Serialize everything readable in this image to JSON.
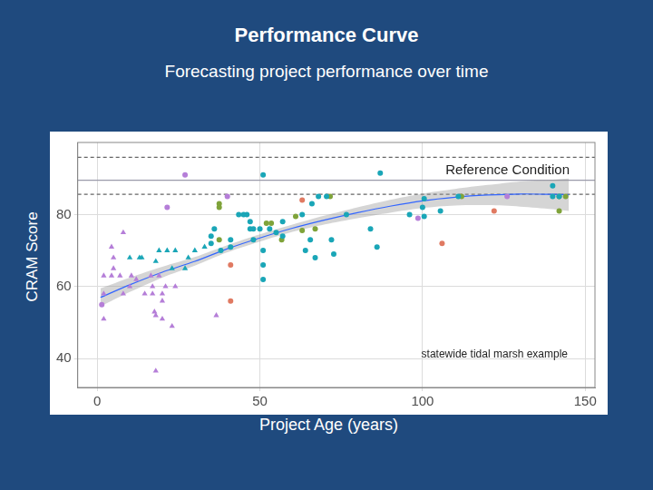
{
  "chart_data": {
    "type": "scatter",
    "title": "Performance Curve",
    "subtitle": "Forecasting project performance over time",
    "x_label": "Project Age (years)",
    "y_label": "CRAM Score",
    "xlim": [
      -6,
      153
    ],
    "ylim": [
      32,
      100
    ],
    "xticks": [
      0,
      50,
      100,
      150
    ],
    "yticks": [
      40,
      60,
      80
    ],
    "grid": true,
    "series": [
      {
        "color": "#b57ed8",
        "marker": "triangle",
        "x": [
          2,
          2,
          2,
          4.4,
          5,
          5,
          4.4,
          8,
          7,
          8,
          10,
          10.5,
          12,
          14.6,
          16.5,
          17,
          17,
          17.6,
          18,
          18,
          19,
          20,
          20,
          20,
          21,
          23,
          24,
          36.6
        ],
        "values": [
          63,
          51,
          58,
          71,
          68,
          65,
          63,
          75,
          63,
          58,
          60,
          63,
          62,
          58,
          63,
          60,
          58,
          53,
          52,
          36.6,
          63,
          58,
          56,
          51,
          60,
          49,
          60,
          52
        ]
      },
      {
        "color": "#b57ed8",
        "marker": "circle",
        "x": [
          1.4,
          21.5,
          27,
          40,
          98.6,
          126
        ],
        "values": [
          55,
          82,
          91,
          85,
          79,
          85
        ]
      },
      {
        "color": "#1aa6b7",
        "marker": "triangle",
        "x": [
          21.5,
          13,
          13.7,
          10,
          18,
          19,
          23,
          24,
          27,
          28,
          30,
          33
        ],
        "values": [
          70,
          68,
          68,
          68,
          67,
          70,
          65,
          70,
          65,
          68,
          70,
          71
        ]
      },
      {
        "color": "#1aa6b7",
        "marker": "circle",
        "x": [
          35,
          35,
          36,
          38,
          41,
          41,
          43.5,
          45,
          46,
          47,
          47,
          48,
          48,
          50,
          51,
          51,
          51,
          51,
          53,
          55,
          57,
          57,
          63,
          64,
          65.5,
          66,
          67,
          68,
          70.5,
          72,
          72.7,
          76.6,
          84,
          86,
          87,
          96,
          100,
          100.5,
          100.5,
          105.5,
          111,
          140,
          140,
          142
        ],
        "values": [
          74,
          72,
          76,
          70,
          73,
          71,
          80,
          80,
          80,
          78,
          76,
          76,
          73,
          76,
          70,
          66,
          62,
          91,
          76,
          75,
          78,
          74,
          80,
          70,
          73,
          83,
          68,
          85,
          85,
          73,
          69,
          80,
          76,
          71,
          91.5,
          80,
          82,
          79.5,
          84.4,
          81,
          85,
          88,
          85,
          85
        ]
      },
      {
        "color": "#7fa33a",
        "marker": "circle",
        "x": [
          37.5,
          37.5,
          37.5,
          52,
          53.5,
          56.7,
          61,
          63,
          67,
          71.6,
          112,
          142,
          142,
          144
        ],
        "values": [
          83,
          82,
          73,
          77.6,
          77.6,
          73,
          79.5,
          75.6,
          76,
          85,
          85,
          81,
          85,
          85
        ]
      },
      {
        "color": "#e07a62",
        "marker": "circle",
        "x": [
          41,
          41,
          63,
          106,
          122
        ],
        "values": [
          66,
          56,
          84,
          72,
          81
        ]
      }
    ],
    "fit": {
      "type": "line",
      "color": "#3366ff",
      "x": [
        1,
        10,
        20,
        30,
        40,
        50,
        60,
        70,
        80,
        90,
        100,
        110,
        120,
        130,
        140,
        145
      ],
      "values": [
        57,
        60.5,
        64,
        67,
        70.5,
        73.5,
        76.2,
        78.5,
        80.5,
        82.3,
        83.8,
        84.8,
        85.4,
        85.7,
        85.6,
        85.5
      ],
      "lower": [
        54.5,
        58.5,
        62.5,
        65.8,
        69.5,
        72.5,
        75.2,
        77.3,
        79,
        80.5,
        81.8,
        82.5,
        82.6,
        82.2,
        81.5,
        81
      ],
      "upper": [
        59.5,
        62.5,
        65.5,
        68.2,
        71.5,
        74.5,
        77.2,
        79.7,
        82,
        84.1,
        85.8,
        87.1,
        88.2,
        89.2,
        89.7,
        90
      ]
    },
    "reference": {
      "label": "Reference Condition",
      "lines": [
        {
          "value": 95.9,
          "line_style": "dashed"
        },
        {
          "value": 89.5,
          "line_style": "solid"
        },
        {
          "value": 85.6,
          "line_style": "dashed"
        }
      ]
    },
    "annotation": "statewide tidal marsh example"
  }
}
